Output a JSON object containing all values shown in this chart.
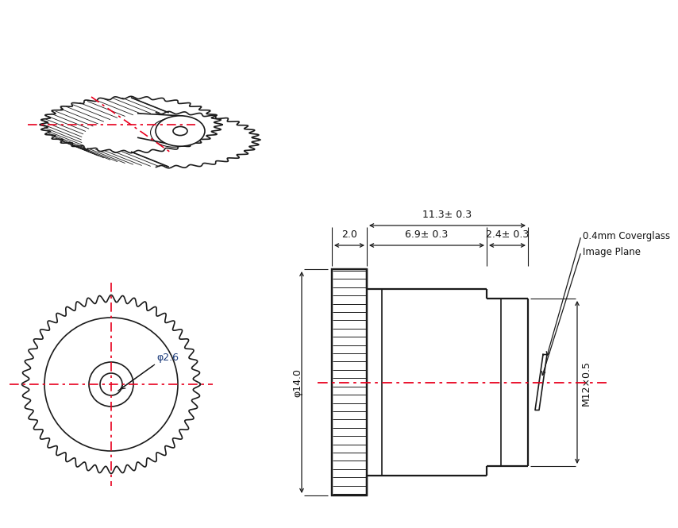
{
  "bg_color": "#ffffff",
  "line_color": "#1a1a1a",
  "red_dash_color": "#e8001e",
  "annotations": {
    "coverglass": "0.4mm Coverglass",
    "image_plane": "Image Plane",
    "phi14": "φ14.0",
    "phi26": "φ2.6",
    "m12": "M12×0.5",
    "dim_total": "11.3± 0.3",
    "dim_knurl": "2.0",
    "dim_body": "6.9± 0.3",
    "dim_nose": "2.4± 0.3"
  }
}
